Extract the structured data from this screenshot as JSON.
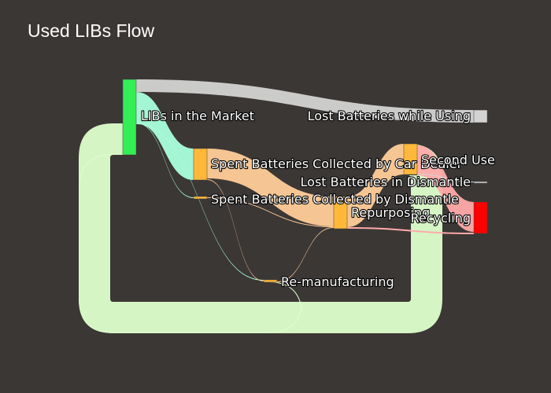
{
  "chart_data": {
    "type": "sankey",
    "title": "Used LIBs Flow",
    "nodes": [
      {
        "name": "LIBs in the Market",
        "color": "#33ee55"
      },
      {
        "name": "Lost Batteries while Using",
        "color": "#d3d3d3"
      },
      {
        "name": "Spent Batteries Collected by Car Dealer",
        "color": "#ffb83a"
      },
      {
        "name": "Spent Batteries Collected by Dismantle",
        "color": "#ffb83a"
      },
      {
        "name": "Lost Batteries in Dismantle",
        "color": "#d3d3d3"
      },
      {
        "name": "Second Use",
        "color": "#ffb83a"
      },
      {
        "name": "Repurposing",
        "color": "#ffb83a"
      },
      {
        "name": "Re-manufacturing",
        "color": "#ffb83a"
      },
      {
        "name": "Recycling",
        "color": "#ff0000"
      }
    ],
    "links": [
      {
        "source": "LIBs in the Market",
        "target": "Lost Batteries while Using",
        "value": 9,
        "color": "#d3d3d3"
      },
      {
        "source": "LIBs in the Market",
        "target": "Spent Batteries Collected by Car Dealer",
        "value": 22,
        "color": "#aaffdd"
      },
      {
        "source": "LIBs in the Market",
        "target": "Spent Batteries Collected by Dismantle",
        "value": 0.5,
        "color": "#aaffdd"
      },
      {
        "source": "LIBs in the Market",
        "target": "Re-manufacturing",
        "value": 0.4,
        "color": "#aaffdd"
      },
      {
        "source": "Spent Batteries Collected by Car Dealer",
        "target": "Repurposing",
        "value": 21,
        "color": "#ffcc99"
      },
      {
        "source": "Spent Batteries Collected by Car Dealer",
        "target": "Re-manufacturing",
        "value": 0.4,
        "color": "#ffcc99"
      },
      {
        "source": "Spent Batteries Collected by Dismantle",
        "target": "Repurposing",
        "value": 0.5,
        "color": "#ffcc99"
      },
      {
        "source": "Re-manufacturing",
        "target": "Repurposing",
        "value": 0.4,
        "color": "#ffcc99"
      },
      {
        "source": "Re-manufacturing",
        "target": "LIBs in the Market",
        "value": 0.4,
        "color": "#ddffcc"
      },
      {
        "source": "Repurposing",
        "target": "Second Use",
        "value": 21,
        "color": "#ffcc99"
      },
      {
        "source": "Repurposing",
        "target": "Recycling",
        "value": 1,
        "color": "#ffaaaa"
      },
      {
        "source": "Second Use",
        "target": "LIBs in the Market",
        "value": 21,
        "color": "#ddffcc"
      },
      {
        "source": "Second Use",
        "target": "Recycling",
        "value": 20,
        "color": "#ffaaaa"
      },
      {
        "source": "Second Use",
        "target": "Lost Batteries in Dismantle",
        "value": 0.2,
        "color": "#d3d3d3"
      }
    ]
  }
}
